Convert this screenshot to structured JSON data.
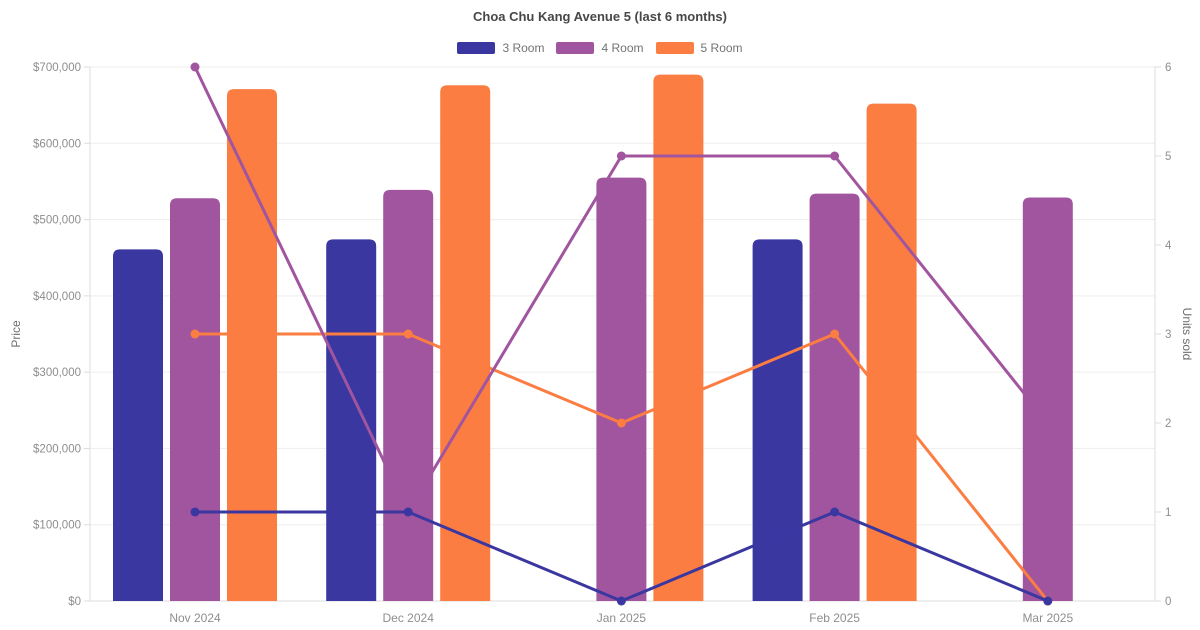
{
  "chart": {
    "title": "Choa Chu Kang Avenue 5 (last 6 months)"
  },
  "chart_data": {
    "type": "bar+line",
    "title": "Choa Chu Kang Avenue 5 (last 6 months)",
    "categories": [
      "Nov 2024",
      "Dec 2024",
      "Jan 2025",
      "Feb 2025",
      "Mar 2025"
    ],
    "series": [
      {
        "name": "3 Room",
        "color": "#3b37a1",
        "bar_prices": [
          461000,
          474000,
          null,
          474000,
          null
        ],
        "line_units": [
          1,
          1,
          0,
          1,
          0
        ]
      },
      {
        "name": "4 Room",
        "color": "#a1559f",
        "bar_prices": [
          528000,
          539000,
          555000,
          534000,
          529000
        ],
        "line_units": [
          6,
          1,
          5,
          5,
          2
        ]
      },
      {
        "name": "5 Room",
        "color": "#fb7d41",
        "bar_prices": [
          671000,
          676000,
          690000,
          652000,
          null
        ],
        "line_units": [
          3,
          3,
          2,
          3,
          0
        ]
      }
    ],
    "y_left": {
      "label": "Price",
      "min": 0,
      "max": 700000,
      "tick_step": 100000,
      "tick_labels": [
        "$0",
        "$100,000",
        "$200,000",
        "$300,000",
        "$400,000",
        "$500,000",
        "$600,000",
        "$700,000"
      ]
    },
    "y_right": {
      "label": "Units sold",
      "min": 0,
      "max": 6,
      "tick_step": 1,
      "tick_labels": [
        "0",
        "1",
        "2",
        "3",
        "4",
        "5",
        "6"
      ]
    },
    "legend_position": "top",
    "grid": true
  },
  "colors": {
    "background": "#ffffff",
    "gridline": "#ededed",
    "axis_border": "#dcdcdc",
    "tick_text": "#8e8e8e",
    "title_text": "#474747",
    "legend_text": "#737373",
    "axis_title_text": "#6e6e6e"
  }
}
